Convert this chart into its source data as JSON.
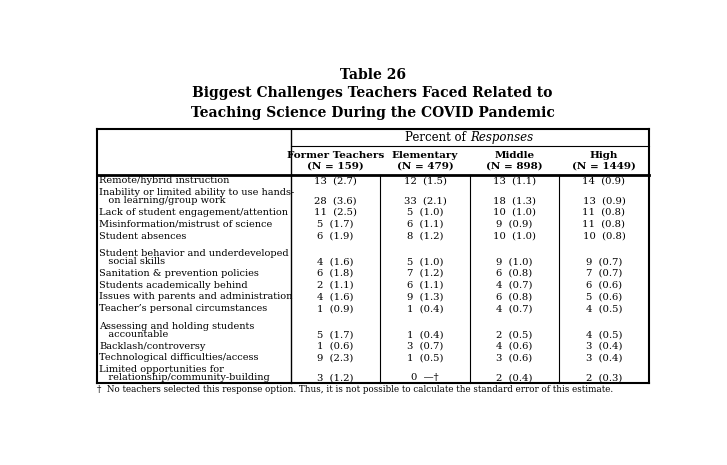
{
  "title_line1": "Table 26",
  "title_line2": "Biggest Challenges Teachers Faced Related to",
  "title_line3": "Teaching Science During the COVID Pandemic",
  "columns": [
    {
      "label": "Former Teachers\n(N = 159)"
    },
    {
      "label": "Elementary\n(N = 479)"
    },
    {
      "label": "Middle\n(N = 898)"
    },
    {
      "label": "High\n(N = 1449)"
    }
  ],
  "rows": [
    {
      "label": "Remote/hybrid instruction",
      "label2": null,
      "values": [
        "13  (2.7)",
        "12  (1.5)",
        "13  (1.1)",
        "14  (0.9)"
      ],
      "blank_before": false
    },
    {
      "label": "Inability or limited ability to use hands-",
      "label2": "   on learning/group work",
      "values": [
        "28  (3.6)",
        "33  (2.1)",
        "18  (1.3)",
        "13  (0.9)"
      ],
      "blank_before": false
    },
    {
      "label": "Lack of student engagement/attention",
      "label2": null,
      "values": [
        "11  (2.5)",
        "5  (1.0)",
        "10  (1.0)",
        "11  (0.8)"
      ],
      "blank_before": false
    },
    {
      "label": "Misinformation/mistrust of science",
      "label2": null,
      "values": [
        "5  (1.7)",
        "6  (1.1)",
        "9  (0.9)",
        "11  (0.8)"
      ],
      "blank_before": false
    },
    {
      "label": "Student absences",
      "label2": null,
      "values": [
        "6  (1.9)",
        "8  (1.2)",
        "10  (1.0)",
        "10  (0.8)"
      ],
      "blank_before": false
    },
    {
      "label": "Student behavior and underdeveloped",
      "label2": "   social skills",
      "values": [
        "4  (1.6)",
        "5  (1.0)",
        "9  (1.0)",
        "9  (0.7)"
      ],
      "blank_before": true
    },
    {
      "label": "Sanitation & prevention policies",
      "label2": null,
      "values": [
        "6  (1.8)",
        "7  (1.2)",
        "6  (0.8)",
        "7  (0.7)"
      ],
      "blank_before": false
    },
    {
      "label": "Students academically behind",
      "label2": null,
      "values": [
        "2  (1.1)",
        "6  (1.1)",
        "4  (0.7)",
        "6  (0.6)"
      ],
      "blank_before": false
    },
    {
      "label": "Issues with parents and administration",
      "label2": null,
      "values": [
        "4  (1.6)",
        "9  (1.3)",
        "6  (0.8)",
        "5  (0.6)"
      ],
      "blank_before": false
    },
    {
      "label": "Teacher’s personal circumstances",
      "label2": null,
      "values": [
        "1  (0.9)",
        "1  (0.4)",
        "4  (0.7)",
        "4  (0.5)"
      ],
      "blank_before": false
    },
    {
      "label": "Assessing and holding students",
      "label2": "   accountable",
      "values": [
        "5  (1.7)",
        "1  (0.4)",
        "2  (0.5)",
        "4  (0.5)"
      ],
      "blank_before": true
    },
    {
      "label": "Backlash/controversy",
      "label2": null,
      "values": [
        "1  (0.6)",
        "3  (0.7)",
        "4  (0.6)",
        "3  (0.4)"
      ],
      "blank_before": false
    },
    {
      "label": "Technological difficulties/access",
      "label2": null,
      "values": [
        "9  (2.3)",
        "1  (0.5)",
        "3  (0.6)",
        "3  (0.4)"
      ],
      "blank_before": false
    },
    {
      "label": "Limited opportunities for",
      "label2": "   relationship/community-building",
      "values": [
        "3  (1.2)",
        "0  —†",
        "2  (0.4)",
        "2  (0.3)"
      ],
      "blank_before": false
    }
  ],
  "footnote": "†  No teachers selected this response option. Thus, it is not possible to calculate the standard error of this estimate.",
  "bg_color": "white",
  "text_color": "black"
}
